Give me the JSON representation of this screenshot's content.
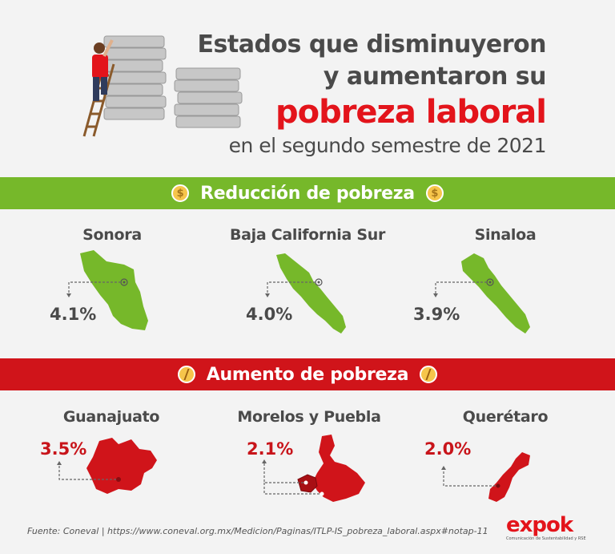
{
  "header": {
    "line1": "Estados que disminuyeron",
    "line2": "y aumentaron su",
    "line3": "pobreza laboral",
    "line4": "en el segundo semestre de 2021"
  },
  "reduction": {
    "title": "Reducción de pobreza",
    "icon": "coin-icon",
    "color": "#76b82a",
    "states": [
      {
        "name": "Sonora",
        "value": "4.1%"
      },
      {
        "name": "Baja California Sur",
        "value": "4.0%"
      },
      {
        "name": "Sinaloa",
        "value": "3.9%"
      }
    ]
  },
  "increase": {
    "title": "Aumento de pobreza",
    "icon": "broken-coin-icon",
    "color": "#d0141a",
    "states": [
      {
        "name": "Guanajuato",
        "value": "3.5%"
      },
      {
        "name": "Morelos y Puebla",
        "value": "2.1%"
      },
      {
        "name": "Querétaro",
        "value": "2.0%"
      }
    ]
  },
  "footer": {
    "source": "Fuente: Coneval   |   https://www.coneval.org.mx/Medicion/Paginas/ITLP-IS_pobreza_laboral.aspx#notap-11",
    "logo": "expok",
    "logo_tagline": "Comunicación de Sustentabilidad y RSE"
  }
}
